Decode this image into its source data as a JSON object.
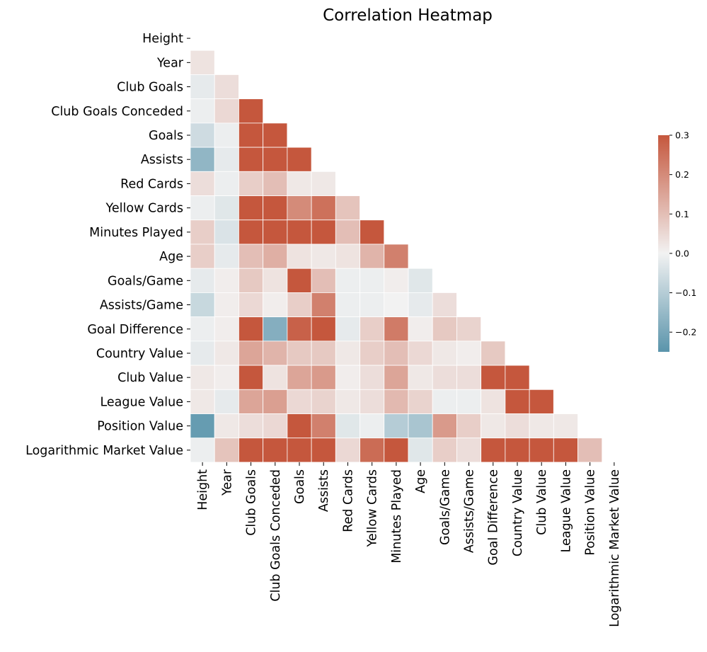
{
  "chart_data": {
    "type": "heatmap",
    "title": "Correlation Heatmap",
    "labels": [
      "Height",
      "Year",
      "Club Goals",
      "Club Goals Conceded",
      "Goals",
      "Assists",
      "Red Cards",
      "Yellow Cards",
      "Minutes Played",
      "Age",
      "Goals/Game",
      "Assists/Game",
      "Goal Difference",
      "Country Value",
      "Club Value",
      "League Value",
      "Position Value",
      "Logarithmic Market Value"
    ],
    "mask": "upper triangle and diagonal hidden",
    "colormap": {
      "negative": "#5a94ab",
      "center": "#f2f2f2",
      "positive": "#c5573d"
    },
    "vmin": -0.25,
    "vmax": 0.3,
    "colorbar_ticks": [
      "0.3",
      "0.2",
      "0.1",
      "0.0",
      "−0.1",
      "−0.2"
    ],
    "colorbar_tick_values": [
      0.3,
      0.2,
      0.1,
      0.0,
      -0.1,
      -0.2
    ],
    "rows": [
      [],
      [
        0.03
      ],
      [
        -0.02,
        0.04
      ],
      [
        -0.01,
        0.05,
        0.3
      ],
      [
        -0.06,
        -0.01,
        0.3,
        0.3
      ],
      [
        -0.16,
        -0.02,
        0.3,
        0.3,
        0.3
      ],
      [
        0.04,
        -0.01,
        0.07,
        0.1,
        0.02,
        0.02
      ],
      [
        -0.01,
        -0.03,
        0.3,
        0.3,
        0.2,
        0.25,
        0.09
      ],
      [
        0.07,
        -0.04,
        0.3,
        0.3,
        0.3,
        0.3,
        0.1,
        0.3
      ],
      [
        0.07,
        -0.02,
        0.1,
        0.13,
        0.03,
        0.02,
        0.03,
        0.12,
        0.22
      ],
      [
        -0.02,
        0.01,
        0.08,
        0.03,
        0.3,
        0.1,
        -0.01,
        -0.01,
        0.01,
        -0.03
      ],
      [
        -0.07,
        0.01,
        0.05,
        0.01,
        0.07,
        0.22,
        -0.01,
        -0.01,
        0.0,
        -0.02,
        0.04
      ],
      [
        -0.01,
        0.01,
        0.3,
        -0.18,
        0.28,
        0.3,
        -0.02,
        0.07,
        0.23,
        0.01,
        0.08,
        0.06
      ],
      [
        -0.02,
        0.02,
        0.15,
        0.12,
        0.08,
        0.08,
        0.02,
        0.07,
        0.1,
        0.05,
        0.02,
        0.01,
        0.08
      ],
      [
        0.02,
        0.01,
        0.3,
        0.03,
        0.15,
        0.17,
        0.01,
        0.04,
        0.15,
        0.02,
        0.04,
        0.04,
        0.3,
        0.3
      ],
      [
        0.02,
        -0.02,
        0.15,
        0.16,
        0.05,
        0.06,
        0.02,
        0.04,
        0.11,
        0.06,
        -0.01,
        -0.01,
        0.03,
        0.3,
        0.3
      ],
      [
        -0.23,
        0.02,
        0.04,
        0.05,
        0.3,
        0.22,
        -0.03,
        -0.01,
        -0.1,
        -0.12,
        0.17,
        0.07,
        0.02,
        0.04,
        0.02,
        0.02
      ],
      [
        -0.01,
        0.09,
        0.3,
        0.3,
        0.3,
        0.3,
        0.05,
        0.26,
        0.3,
        -0.03,
        0.07,
        0.04,
        0.3,
        0.3,
        0.3,
        0.3,
        0.1
      ]
    ]
  }
}
